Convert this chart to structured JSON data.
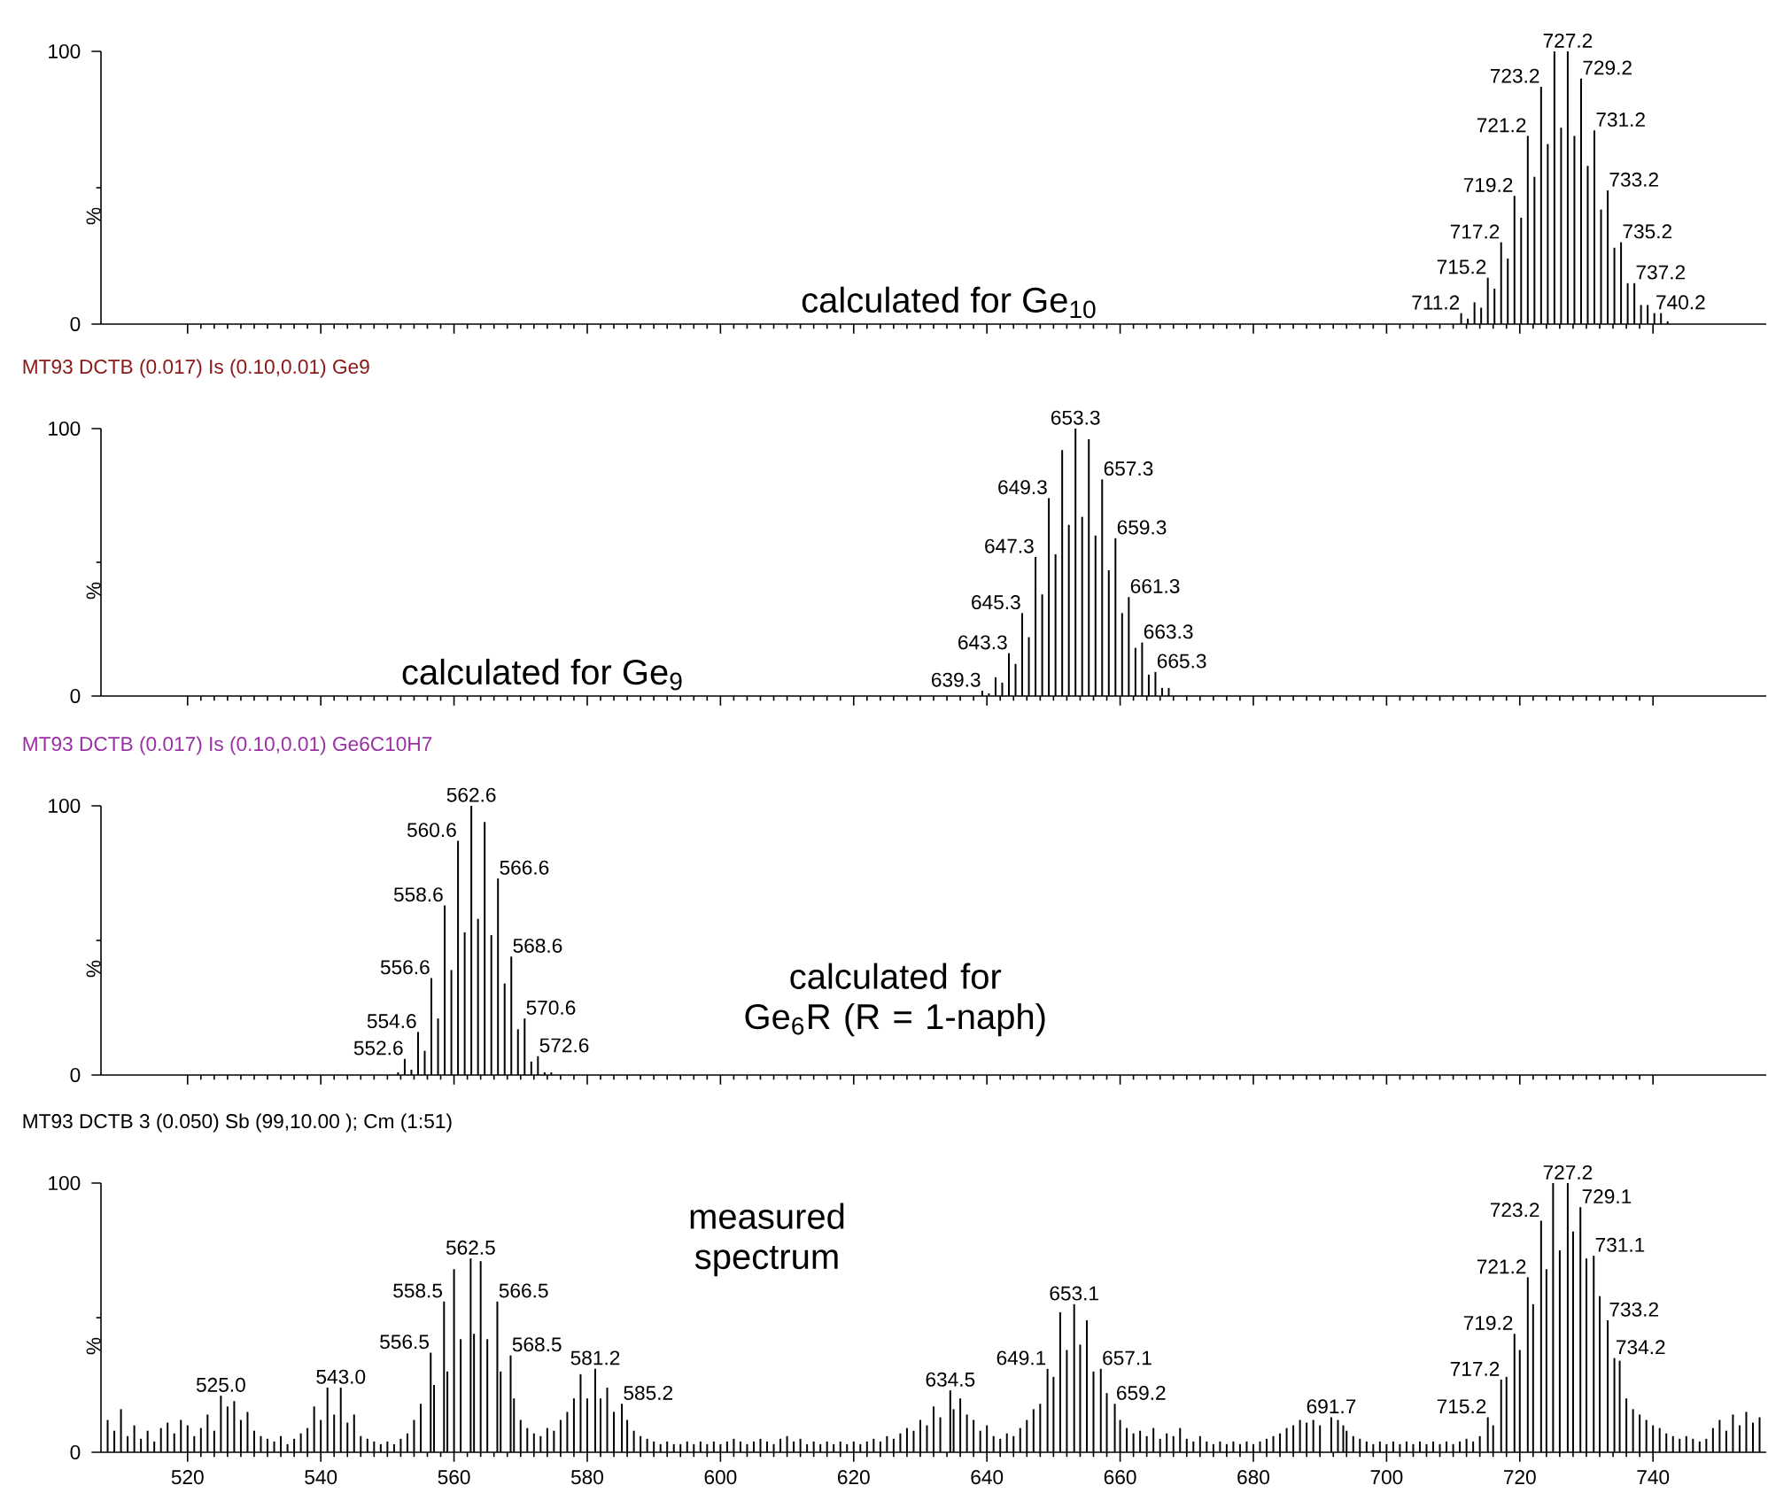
{
  "chart_data": [
    {
      "type": "bar",
      "color": "#000000",
      "xlim": [
        507,
        757
      ],
      "xticks": [
        520,
        540,
        560,
        580,
        600,
        620,
        640,
        660,
        680,
        700,
        720,
        740
      ],
      "ylim": [
        0,
        100
      ],
      "yticks": [
        0,
        100
      ],
      "ylabel": "%",
      "tick_labels": "y",
      "x": [
        711.2,
        712.2,
        713.2,
        714.2,
        715.2,
        716.2,
        717.2,
        718.2,
        719.2,
        720.2,
        721.2,
        722.2,
        723.2,
        724.2,
        725.2,
        726.2,
        727.2,
        728.2,
        729.2,
        730.2,
        731.2,
        732.2,
        733.2,
        734.2,
        735.2,
        736.2,
        737.2,
        738.2,
        739.2,
        740.2,
        741.2,
        742.2
      ],
      "values": [
        4,
        2,
        8,
        6,
        17,
        13,
        30,
        24,
        47,
        39,
        69,
        54,
        87,
        66,
        100,
        72,
        100,
        69,
        90,
        58,
        71,
        42,
        49,
        28,
        30,
        15,
        15,
        7,
        7,
        4,
        4,
        1
      ],
      "annotations": [
        "calculated for Ge$_{10}$",
        {
          "text": "711.2",
          "x": 711.2,
          "y": 4
        },
        {
          "text": "715.2",
          "x": 715.2,
          "y": 17
        },
        {
          "text": "717.2",
          "x": 717.2,
          "y": 30
        },
        {
          "text": "719.2",
          "x": 719.2,
          "y": 47
        },
        {
          "text": "721.2",
          "x": 721.2,
          "y": 69
        },
        {
          "text": "723.2",
          "x": 723.2,
          "y": 87
        },
        {
          "text": "727.2",
          "x": 727.2,
          "y": 100
        },
        {
          "text": "729.2",
          "x": 729.2,
          "y": 90
        },
        {
          "text": "731.2",
          "x": 731.2,
          "y": 71
        },
        {
          "text": "733.2",
          "x": 733.2,
          "y": 49
        },
        {
          "text": "735.2",
          "x": 735.2,
          "y": 30
        },
        {
          "text": "737.2",
          "x": 737.2,
          "y": 15
        },
        {
          "text": "740.2",
          "x": 740.2,
          "y": 4
        }
      ]
    },
    {
      "type": "bar",
      "title": "MT93 DCTB (0.017) Is (0.10,0.01) Ge9",
      "color": "#000000",
      "xlim": [
        507,
        757
      ],
      "xticks": [
        520,
        540,
        560,
        580,
        600,
        620,
        640,
        660,
        680,
        700,
        720,
        740
      ],
      "ylim": [
        0,
        100
      ],
      "yticks": [
        0,
        100
      ],
      "ylabel": "%",
      "tick_labels": "y",
      "x": [
        639.3,
        640.3,
        641.3,
        642.3,
        643.3,
        644.3,
        645.3,
        646.3,
        647.3,
        648.3,
        649.3,
        650.3,
        651.3,
        652.3,
        653.3,
        654.3,
        655.3,
        656.3,
        657.3,
        658.3,
        659.3,
        660.3,
        661.3,
        662.3,
        663.3,
        664.3,
        665.3,
        666.3,
        667.3
      ],
      "values": [
        2,
        1,
        7,
        5,
        16,
        12,
        31,
        22,
        52,
        38,
        74,
        53,
        92,
        64,
        100,
        67,
        96,
        60,
        81,
        47,
        59,
        31,
        37,
        18,
        20,
        8,
        9,
        3,
        3
      ],
      "annotations": [
        "calculated for Ge$_{9}$",
        {
          "text": "639.3",
          "x": 639.3,
          "y": 2
        },
        {
          "text": "643.3",
          "x": 643.3,
          "y": 16
        },
        {
          "text": "645.3",
          "x": 645.3,
          "y": 31
        },
        {
          "text": "647.3",
          "x": 647.3,
          "y": 52
        },
        {
          "text": "649.3",
          "x": 649.3,
          "y": 74
        },
        {
          "text": "653.3",
          "x": 653.3,
          "y": 100
        },
        {
          "text": "657.3",
          "x": 657.3,
          "y": 81
        },
        {
          "text": "659.3",
          "x": 659.3,
          "y": 59
        },
        {
          "text": "661.3",
          "x": 661.3,
          "y": 37
        },
        {
          "text": "663.3",
          "x": 663.3,
          "y": 20
        },
        {
          "text": "665.3",
          "x": 665.3,
          "y": 9
        }
      ]
    },
    {
      "type": "bar",
      "title": "MT93 DCTB (0.017) Is (0.10,0.01) Ge6C10H7",
      "color": "#000000",
      "xlim": [
        507,
        757
      ],
      "xticks": [
        520,
        540,
        560,
        580,
        600,
        620,
        640,
        660,
        680,
        700,
        720,
        740
      ],
      "ylim": [
        0,
        100
      ],
      "yticks": [
        0,
        100
      ],
      "ylabel": "%",
      "tick_labels": "y",
      "x": [
        551.6,
        552.6,
        553.6,
        554.6,
        555.6,
        556.6,
        557.6,
        558.6,
        559.6,
        560.6,
        561.6,
        562.6,
        563.6,
        564.6,
        565.6,
        566.6,
        567.6,
        568.6,
        569.6,
        570.6,
        571.6,
        572.6,
        573.6,
        574.6
      ],
      "values": [
        1,
        6,
        2,
        16,
        9,
        36,
        21,
        63,
        39,
        87,
        53,
        100,
        58,
        94,
        52,
        73,
        34,
        44,
        17,
        21,
        5,
        7,
        1,
        1
      ],
      "annotations": [
        "calculated for Ge$_{6}$R (R = 1-naph)",
        {
          "text": "552.6",
          "x": 552.6,
          "y": 6
        },
        {
          "text": "554.6",
          "x": 554.6,
          "y": 16
        },
        {
          "text": "556.6",
          "x": 556.6,
          "y": 36
        },
        {
          "text": "558.6",
          "x": 558.6,
          "y": 63
        },
        {
          "text": "560.6",
          "x": 560.6,
          "y": 87
        },
        {
          "text": "562.6",
          "x": 562.6,
          "y": 100
        },
        {
          "text": "566.6",
          "x": 566.6,
          "y": 73
        },
        {
          "text": "568.6",
          "x": 568.6,
          "y": 44
        },
        {
          "text": "570.6",
          "x": 570.6,
          "y": 21
        },
        {
          "text": "572.6",
          "x": 572.6,
          "y": 7
        }
      ]
    },
    {
      "type": "bar",
      "title": "MT93 DCTB 3 (0.050) Sb (99,10.00 ); Cm (1:51)",
      "color": "#000000",
      "xlim": [
        507,
        757
      ],
      "xticks": [
        520,
        540,
        560,
        580,
        600,
        620,
        640,
        660,
        680,
        700,
        720,
        740
      ],
      "ylim": [
        0,
        100
      ],
      "yticks": [
        0,
        100
      ],
      "ylabel": "%",
      "x": [
        508,
        509,
        510,
        511,
        512,
        513,
        514,
        515,
        516,
        517,
        518,
        519,
        520,
        521,
        522,
        523,
        524,
        525,
        526,
        527,
        528,
        529,
        530,
        531,
        532,
        533,
        534,
        535,
        536,
        537,
        538,
        539,
        540,
        541,
        542,
        543,
        544,
        545,
        546,
        547,
        548,
        549,
        550,
        551,
        552,
        553,
        554,
        555,
        556.5,
        557,
        558.5,
        559,
        560,
        561,
        562.5,
        563,
        564,
        565,
        566.5,
        567,
        568.5,
        569,
        570,
        571,
        572,
        573,
        574,
        575,
        576,
        577,
        578,
        579,
        580,
        581.2,
        582,
        583,
        584,
        585.2,
        586,
        587,
        588,
        589,
        590,
        591,
        592,
        593,
        594,
        595,
        596,
        597,
        598,
        599,
        600,
        601,
        602,
        603,
        604,
        605,
        606,
        607,
        608,
        609,
        610,
        611,
        612,
        613,
        614,
        615,
        616,
        617,
        618,
        619,
        620,
        621,
        622,
        623,
        624,
        625,
        626,
        627,
        628,
        629,
        630,
        631,
        632,
        633,
        634.5,
        635,
        636,
        637,
        638,
        639,
        640,
        641,
        642,
        643,
        644,
        645,
        646,
        647,
        648,
        649.1,
        650,
        651,
        652,
        653.1,
        654,
        655,
        656,
        657.1,
        658,
        659.2,
        660,
        661,
        662,
        663,
        664,
        665,
        666,
        667,
        668,
        669,
        670,
        671,
        672,
        673,
        674,
        675,
        676,
        677,
        678,
        679,
        680,
        681,
        682,
        683,
        684,
        685,
        686,
        687,
        688,
        689,
        690,
        691.7,
        692.7,
        693.5,
        694,
        695,
        696,
        697,
        698,
        699,
        700,
        701,
        702,
        703,
        704,
        705,
        706,
        707,
        708,
        709,
        710,
        711,
        712,
        713,
        714,
        715.2,
        716,
        717.2,
        718,
        719.2,
        720,
        721.2,
        722,
        723.2,
        724,
        725,
        726,
        727.2,
        728,
        729.1,
        730,
        731.1,
        732,
        733.2,
        734.2,
        735,
        736,
        737,
        738,
        739,
        740,
        741,
        742,
        743,
        744,
        745,
        746,
        747,
        748,
        749,
        750,
        751,
        752,
        753,
        754,
        755,
        756
      ],
      "values": [
        12,
        8,
        16,
        6,
        10,
        5,
        8,
        4,
        9,
        11,
        7,
        12,
        10,
        6,
        9,
        14,
        8,
        21,
        17,
        19,
        12,
        15,
        8,
        6,
        5,
        4,
        6,
        3,
        5,
        7,
        9,
        17,
        12,
        24,
        14,
        24,
        11,
        14,
        6,
        5,
        4,
        3,
        4,
        3,
        5,
        7,
        12,
        18,
        37,
        25,
        56,
        30,
        68,
        42,
        72,
        44,
        71,
        42,
        56,
        30,
        36,
        20,
        12,
        9,
        7,
        6,
        9,
        8,
        12,
        15,
        20,
        29,
        20,
        31,
        20,
        24,
        15,
        18,
        12,
        8,
        6,
        5,
        4,
        3,
        4,
        3,
        3,
        4,
        3,
        4,
        3,
        4,
        3,
        4,
        5,
        4,
        3,
        4,
        5,
        4,
        3,
        5,
        6,
        4,
        5,
        3,
        4,
        3,
        4,
        3,
        4,
        3,
        4,
        3,
        4,
        5,
        4,
        6,
        5,
        7,
        9,
        8,
        12,
        10,
        17,
        13,
        23,
        16,
        20,
        14,
        12,
        8,
        10,
        6,
        5,
        7,
        6,
        9,
        12,
        16,
        18,
        31,
        28,
        52,
        38,
        55,
        40,
        49,
        30,
        31,
        22,
        18,
        12,
        9,
        7,
        8,
        6,
        9,
        5,
        7,
        6,
        9,
        5,
        4,
        6,
        4,
        3,
        4,
        3,
        4,
        3,
        4,
        3,
        4,
        5,
        6,
        7,
        9,
        10,
        12,
        11,
        12,
        10,
        13,
        12,
        10,
        8,
        6,
        5,
        4,
        3,
        4,
        3,
        4,
        3,
        4,
        3,
        4,
        3,
        4,
        3,
        4,
        3,
        4,
        5,
        4,
        6,
        13,
        10,
        27,
        28,
        44,
        38,
        65,
        55,
        86,
        68,
        100,
        75,
        100,
        82,
        91,
        72,
        73,
        58,
        49,
        35,
        34,
        20,
        16,
        14,
        12,
        10,
        9,
        7,
        6,
        5,
        6,
        5,
        4,
        5,
        9,
        12,
        8,
        14,
        10,
        15,
        11,
        13
      ],
      "annotations": [
        "measured spectrum",
        {
          "text": "525.0",
          "x": 525,
          "y": 21
        },
        {
          "text": "543.0",
          "x": 543,
          "y": 24
        },
        {
          "text": "556.5",
          "x": 556.5,
          "y": 37
        },
        {
          "text": "558.5",
          "x": 558.5,
          "y": 56
        },
        {
          "text": "562.5",
          "x": 562.5,
          "y": 72
        },
        {
          "text": "566.5",
          "x": 566.5,
          "y": 56
        },
        {
          "text": "568.5",
          "x": 568.5,
          "y": 36
        },
        {
          "text": "581.2",
          "x": 581.2,
          "y": 31
        },
        {
          "text": "585.2",
          "x": 585.2,
          "y": 18
        },
        {
          "text": "634.5",
          "x": 634.5,
          "y": 23
        },
        {
          "text": "649.1",
          "x": 649.1,
          "y": 31
        },
        {
          "text": "653.1",
          "x": 653.1,
          "y": 55
        },
        {
          "text": "657.1",
          "x": 657.1,
          "y": 31
        },
        {
          "text": "659.2",
          "x": 659.2,
          "y": 18
        },
        {
          "text": "691.7",
          "x": 691.7,
          "y": 13
        },
        {
          "text": "715.2",
          "x": 715.2,
          "y": 13
        },
        {
          "text": "717.2",
          "x": 717.2,
          "y": 27
        },
        {
          "text": "719.2",
          "x": 719.2,
          "y": 44
        },
        {
          "text": "721.2",
          "x": 721.2,
          "y": 65
        },
        {
          "text": "723.2",
          "x": 723.2,
          "y": 86
        },
        {
          "text": "727.2",
          "x": 727.2,
          "y": 100
        },
        {
          "text": "729.1",
          "x": 729.1,
          "y": 91
        },
        {
          "text": "731.1",
          "x": 731.1,
          "y": 73
        },
        {
          "text": "733.2",
          "x": 733.2,
          "y": 49
        },
        {
          "text": "734.2",
          "x": 734.2,
          "y": 35
        }
      ]
    }
  ]
}
